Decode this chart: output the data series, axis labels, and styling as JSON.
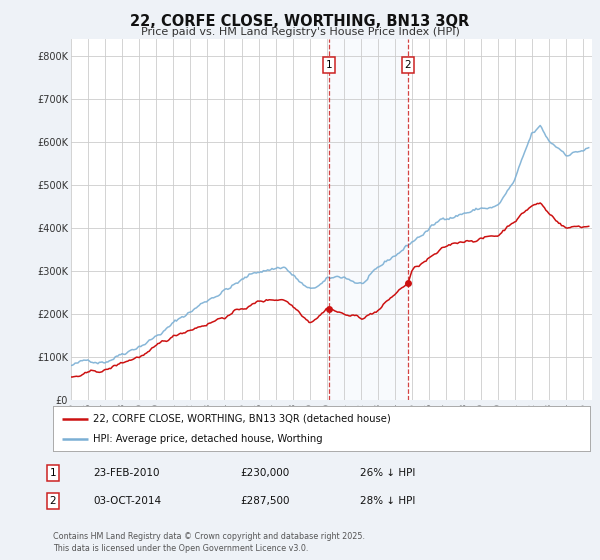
{
  "title": "22, CORFE CLOSE, WORTHING, BN13 3QR",
  "subtitle": "Price paid vs. HM Land Registry's House Price Index (HPI)",
  "ylabel_ticks": [
    "£0",
    "£100K",
    "£200K",
    "£300K",
    "£400K",
    "£500K",
    "£600K",
    "£700K",
    "£800K"
  ],
  "ylim": [
    0,
    840000
  ],
  "xlim_start": 1995.0,
  "xlim_end": 2025.5,
  "hpi_color": "#7bafd4",
  "price_color": "#cc1111",
  "bg_color": "#eef2f7",
  "plot_bg": "#ffffff",
  "grid_color": "#cccccc",
  "shade_color": "#dde8f5",
  "vline_color": "#cc2222",
  "transactions": [
    {
      "date": 2010.13,
      "price": 230000,
      "label": "1"
    },
    {
      "date": 2014.75,
      "price": 287500,
      "label": "2"
    }
  ],
  "legend_entries": [
    "22, CORFE CLOSE, WORTHING, BN13 3QR (detached house)",
    "HPI: Average price, detached house, Worthing"
  ],
  "table_entries": [
    {
      "num": "1",
      "date": "23-FEB-2010",
      "price": "£230,000",
      "note": "26% ↓ HPI"
    },
    {
      "num": "2",
      "date": "03-OCT-2014",
      "price": "£287,500",
      "note": "28% ↓ HPI"
    }
  ],
  "footnote": "Contains HM Land Registry data © Crown copyright and database right 2025.\nThis data is licensed under the Open Government Licence v3.0."
}
